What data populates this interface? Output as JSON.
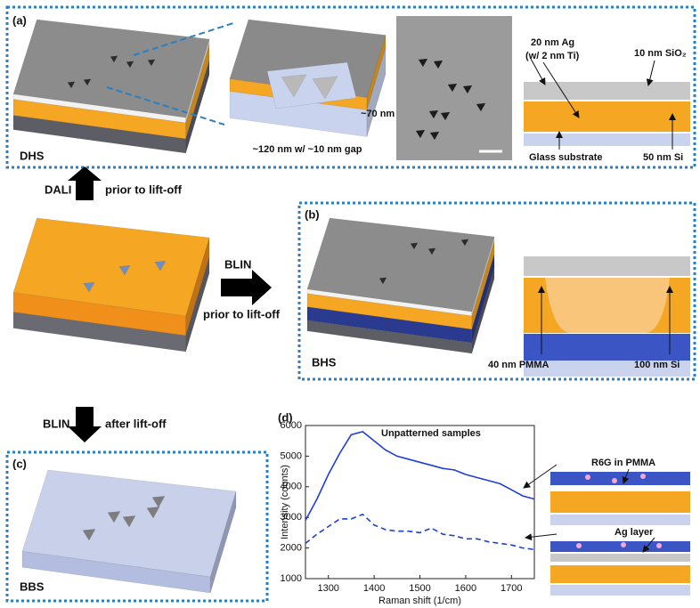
{
  "panel_a": {
    "label": "(a)",
    "sample": "DHS",
    "gap_label": "~120 nm w/ ~10 nm gap",
    "height_label": "~70 nm",
    "ag_label": "20 nm Ag",
    "ti_label": "(w/ 2 nm Ti)",
    "sio2_label": "10 nm SiO₂",
    "glass_label": "Glass substrate",
    "si_label": "50 nm Si"
  },
  "arrows": {
    "up_left": "DALI",
    "up_right": "prior to lift-off",
    "right_top": "BLIN",
    "right_bottom": "prior to lift-off",
    "down_left": "BLIN",
    "down_right": "after lift-off"
  },
  "panel_b": {
    "label": "(b)",
    "sample": "BHS",
    "pmma_label": "40 nm PMMA",
    "si_label": "100 nm Si"
  },
  "panel_c": {
    "label": "(c)",
    "sample": "BBS"
  },
  "panel_d": {
    "label": "(d)",
    "legend_note": "Unpatterned samples",
    "top_diagram_label": "R6G in PMMA",
    "bottom_diagram_label": "Ag layer"
  },
  "chart_data": {
    "type": "line",
    "x_label": "Raman shift (1/cm)",
    "y_label": "Intensity (counts)",
    "xlim": [
      1250,
      1750
    ],
    "ylim": [
      1000,
      6000
    ],
    "xticks": [
      1300,
      1400,
      1500,
      1600,
      1700
    ],
    "yticks": [
      1000,
      2000,
      3000,
      4000,
      5000,
      6000
    ],
    "x": [
      1250,
      1275,
      1300,
      1325,
      1350,
      1375,
      1400,
      1425,
      1450,
      1475,
      1500,
      1525,
      1550,
      1575,
      1600,
      1625,
      1650,
      1675,
      1700,
      1725,
      1750
    ],
    "series": [
      {
        "color": "#1f3fd8",
        "linestyle": "solid",
        "values": [
          2900,
          3600,
          4400,
          5100,
          5700,
          5800,
          5500,
          5200,
          5000,
          4900,
          4800,
          4700,
          4600,
          4550,
          4400,
          4300,
          4200,
          4100,
          3900,
          3700,
          3600
        ]
      },
      {
        "color": "#1f3fd8",
        "linestyle": "dashed",
        "values": [
          2150,
          2450,
          2700,
          2950,
          2950,
          3100,
          2750,
          2600,
          2550,
          2550,
          2500,
          2650,
          2450,
          2400,
          2300,
          2300,
          2200,
          2150,
          2100,
          2000,
          1950
        ]
      }
    ]
  }
}
